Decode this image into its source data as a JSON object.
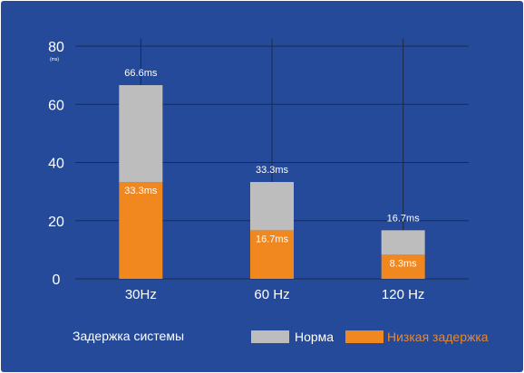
{
  "chart_data": {
    "type": "bar",
    "stacked": true,
    "y_unit": "(ms)",
    "categories": [
      "30Hz",
      "60 Hz",
      "120 Hz"
    ],
    "series": [
      {
        "name": "Низкая задержка",
        "values": [
          33.3,
          16.7,
          8.3
        ],
        "labels": [
          "33.3ms",
          "16.7ms",
          "8.3ms"
        ],
        "color": "#f0871f"
      },
      {
        "name": "Норма",
        "values": [
          33.3,
          16.6,
          8.4
        ],
        "labels": [
          "66.6ms",
          "33.3ms",
          "16.7ms"
        ],
        "color": "#bdbdbd"
      }
    ],
    "totals": [
      66.6,
      33.3,
      16.7
    ],
    "ylim": [
      0,
      80
    ],
    "yticks": [
      0,
      20,
      40,
      60,
      80
    ],
    "grid": true,
    "caption": "Задержка системы",
    "legend_position": "bottom-right"
  },
  "colors": {
    "background": "#254a9a",
    "gridline": "#1d2a45",
    "normal": "#bdbdbd",
    "low_latency": "#f0871f",
    "text": "#ffffff"
  }
}
